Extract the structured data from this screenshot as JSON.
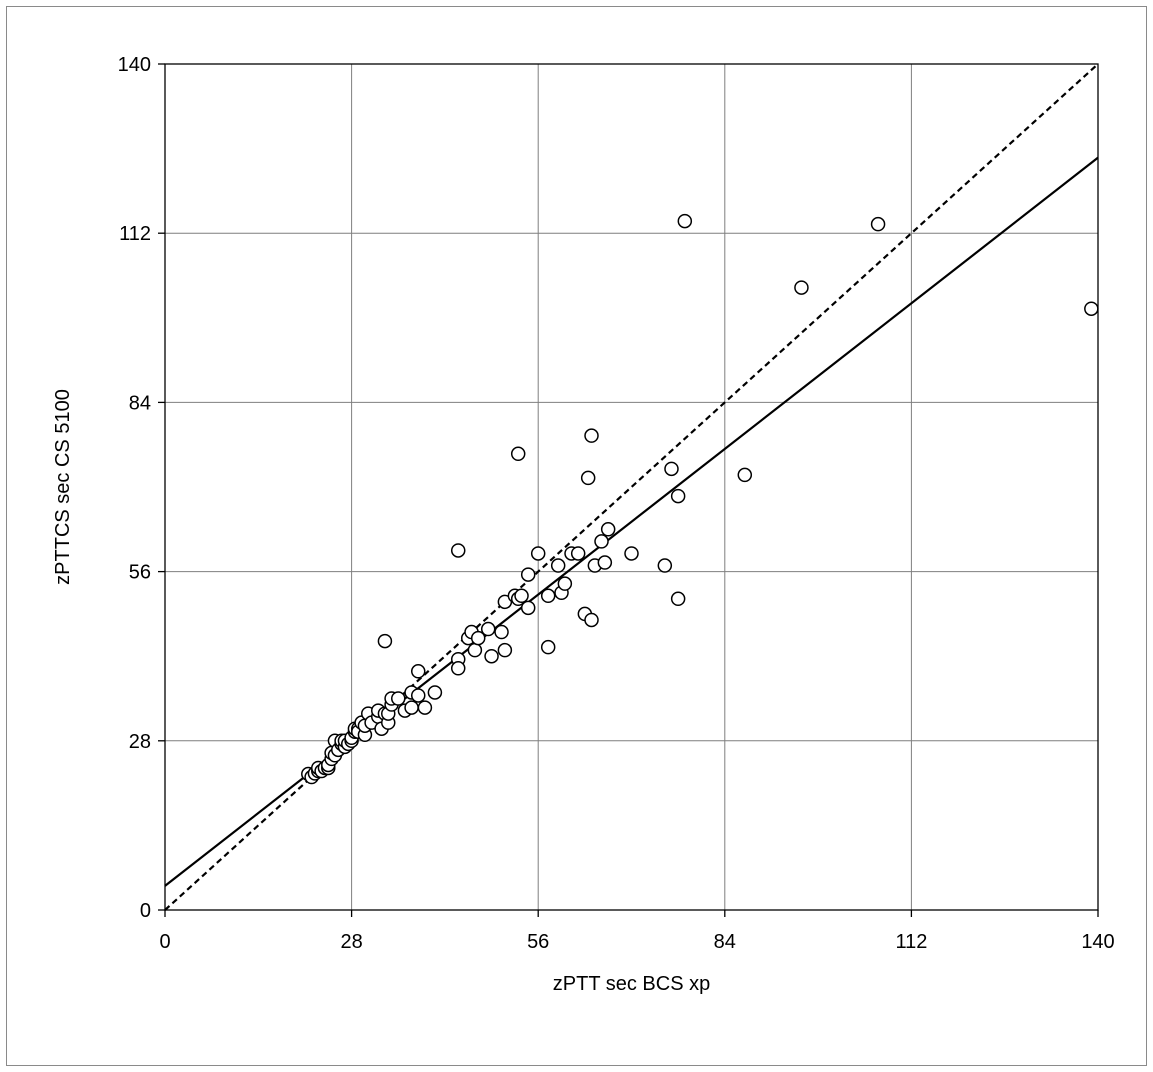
{
  "chart_data": {
    "type": "scatter",
    "xlabel": "zPTT sec BCS xp",
    "ylabel": "zPTTCS sec CS 5100",
    "xlim": [
      0,
      140
    ],
    "ylim": [
      0,
      140
    ],
    "x_ticks": [
      0,
      28,
      56,
      84,
      112,
      140
    ],
    "y_ticks": [
      0,
      28,
      56,
      84,
      112,
      140
    ],
    "grid": true,
    "legend": "none",
    "marker": "open-circle",
    "series": [
      {
        "points": [
          [
            21.5,
            22.5
          ],
          [
            22,
            22
          ],
          [
            22.5,
            22.6
          ],
          [
            23,
            23
          ],
          [
            23,
            23.5
          ],
          [
            23.5,
            23
          ],
          [
            24,
            23.5
          ],
          [
            24.5,
            23.5
          ],
          [
            24.5,
            24
          ],
          [
            25,
            25
          ],
          [
            25,
            26
          ],
          [
            25.5,
            25.6
          ],
          [
            25.5,
            28
          ],
          [
            26,
            26.5
          ],
          [
            26.5,
            27.5
          ],
          [
            26.5,
            28
          ],
          [
            27,
            27
          ],
          [
            27,
            28
          ],
          [
            27.5,
            27.5
          ],
          [
            28,
            28
          ],
          [
            28,
            28.5
          ],
          [
            28.5,
            29.5
          ],
          [
            28.5,
            30
          ],
          [
            29,
            30
          ],
          [
            29,
            29.5
          ],
          [
            29.5,
            31
          ],
          [
            30,
            29
          ],
          [
            30,
            30.5
          ],
          [
            30.5,
            32.5
          ],
          [
            31,
            31
          ],
          [
            32,
            32
          ],
          [
            32,
            33
          ],
          [
            32.5,
            30
          ],
          [
            33,
            32.5
          ],
          [
            33,
            44.5
          ],
          [
            33.5,
            31
          ],
          [
            33.5,
            32.5
          ],
          [
            34,
            34
          ],
          [
            34,
            35
          ],
          [
            35,
            35
          ],
          [
            36,
            33
          ],
          [
            37,
            36
          ],
          [
            37,
            33.5
          ],
          [
            38,
            35.5
          ],
          [
            38,
            39.5
          ],
          [
            39,
            33.5
          ],
          [
            40.5,
            36
          ],
          [
            44,
            41.5
          ],
          [
            44,
            40
          ],
          [
            44,
            59.5
          ],
          [
            45.5,
            45
          ],
          [
            46,
            46
          ],
          [
            46.5,
            43
          ],
          [
            47,
            45
          ],
          [
            48.5,
            46.5
          ],
          [
            49,
            42
          ],
          [
            50.5,
            46
          ],
          [
            51,
            51
          ],
          [
            51,
            43
          ],
          [
            52.5,
            52
          ],
          [
            53,
            51.5
          ],
          [
            53.5,
            52
          ],
          [
            53,
            75.5
          ],
          [
            54.5,
            50
          ],
          [
            54.5,
            55.5
          ],
          [
            56,
            59
          ],
          [
            57.5,
            43.5
          ],
          [
            57.5,
            52
          ],
          [
            59,
            57
          ],
          [
            59.5,
            52.5
          ],
          [
            60,
            54
          ],
          [
            61,
            59
          ],
          [
            62,
            59
          ],
          [
            63,
            49
          ],
          [
            63.5,
            71.5
          ],
          [
            64,
            48
          ],
          [
            64,
            78.5
          ],
          [
            64.5,
            57
          ],
          [
            65.5,
            61
          ],
          [
            66,
            57.5
          ],
          [
            66.5,
            63
          ],
          [
            70,
            59
          ],
          [
            75,
            57
          ],
          [
            76,
            73
          ],
          [
            77,
            51.5
          ],
          [
            77,
            68.5
          ],
          [
            78,
            114
          ],
          [
            87,
            72
          ],
          [
            95.5,
            103
          ],
          [
            107,
            113.5
          ],
          [
            139,
            99.5
          ]
        ]
      }
    ],
    "lines": [
      {
        "style": "solid",
        "points": [
          [
            0,
            4
          ],
          [
            140,
            124.5
          ]
        ]
      },
      {
        "style": "dashed",
        "points": [
          [
            0,
            0
          ],
          [
            140,
            140
          ]
        ]
      }
    ]
  }
}
